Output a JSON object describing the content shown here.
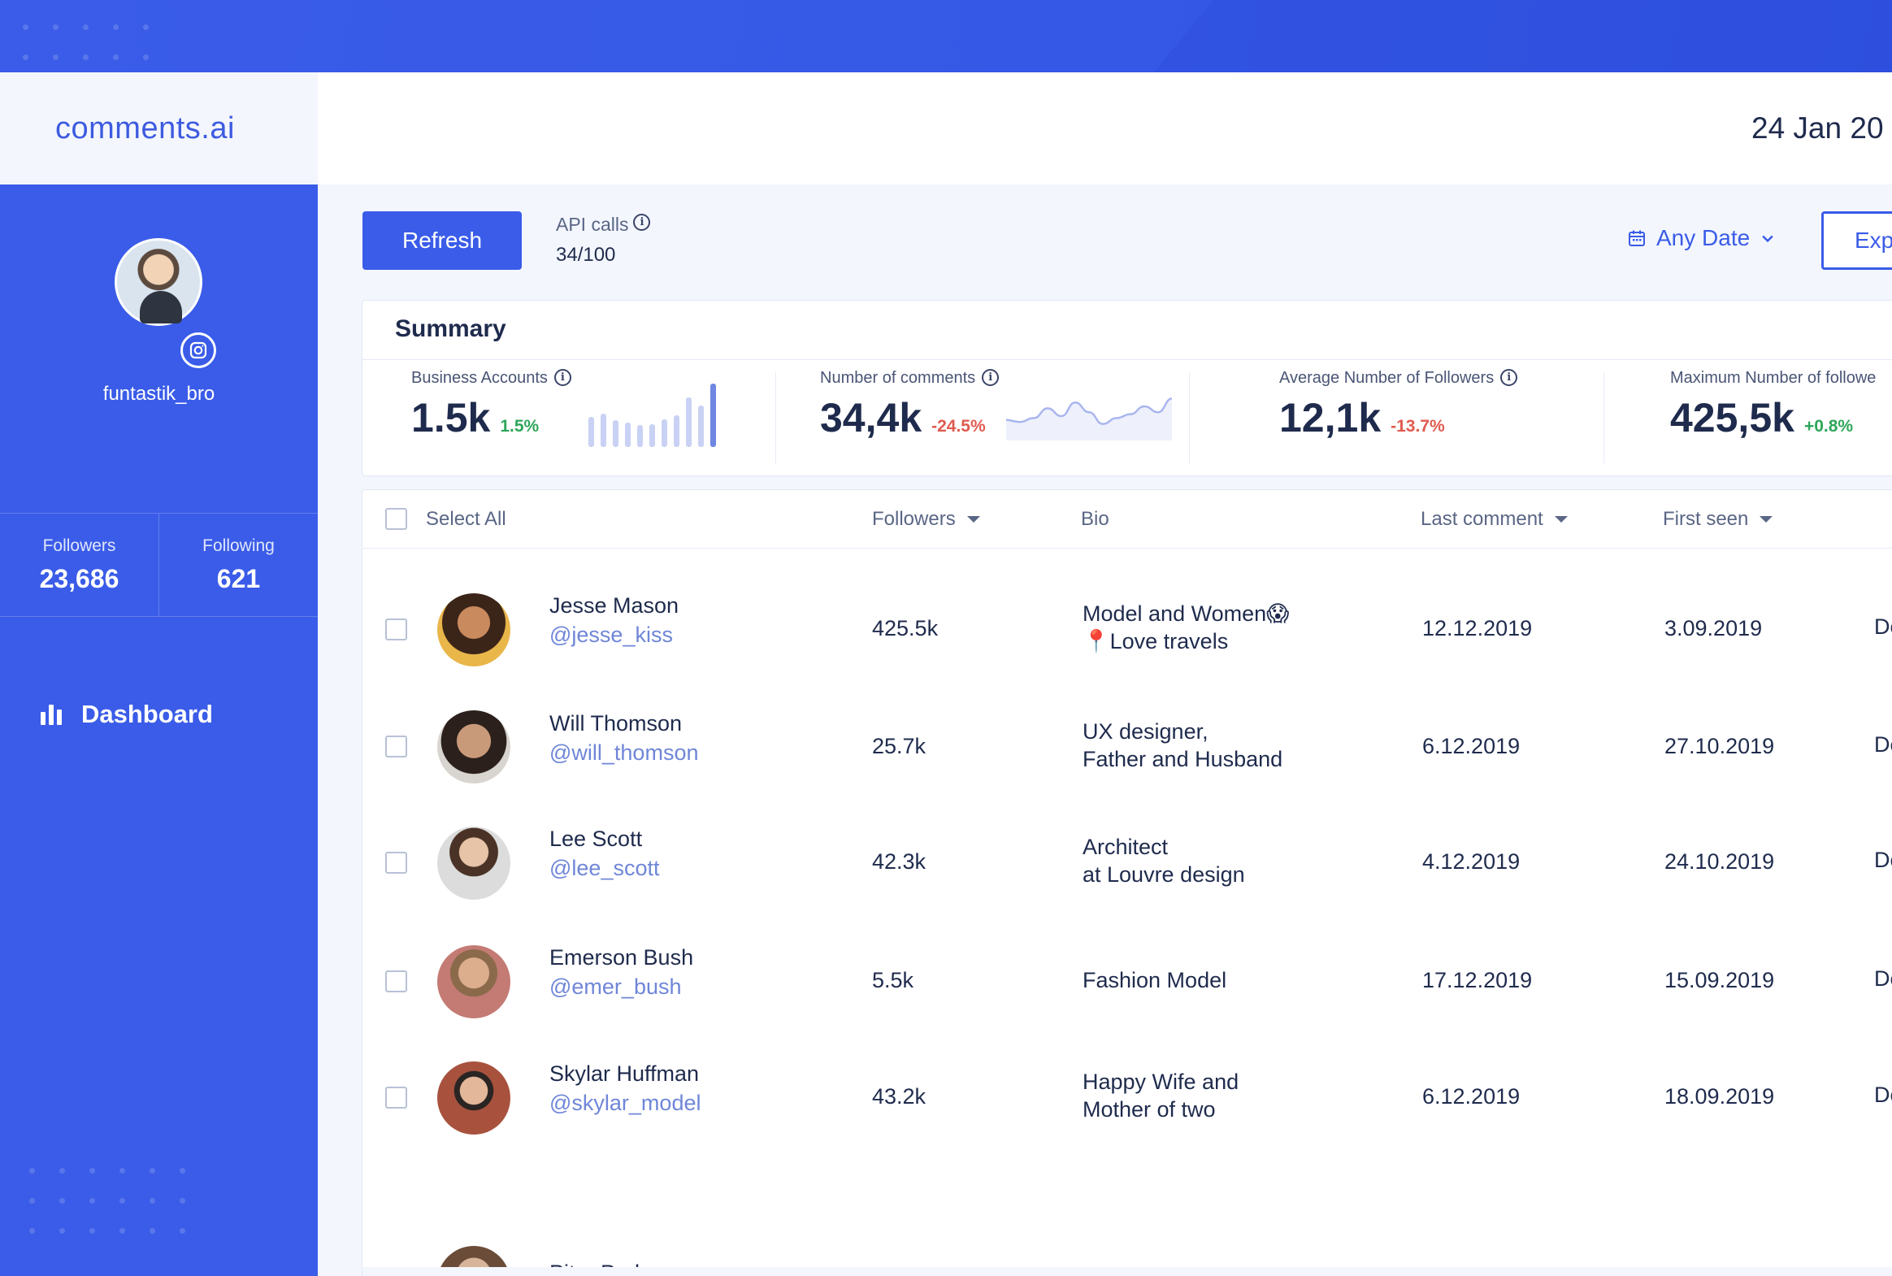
{
  "app": {
    "brand": "comments.ai",
    "date": "24 Jan 20",
    "colors": {
      "accent": "#3a5ce8",
      "positive": "#2ea65a",
      "negative": "#e05a4f"
    }
  },
  "profile": {
    "username": "funtastik_bro",
    "followers_label": "Followers",
    "followers_value": "23,686",
    "following_label": "Following",
    "following_value": "621",
    "badge_icon": "instagram-icon"
  },
  "nav": {
    "dashboard_label": "Dashboard",
    "dashboard_icon": "bar-chart-icon"
  },
  "toolbar": {
    "refresh_label": "Refresh",
    "api_label": "API calls",
    "api_value": "34/100",
    "date_filter_label": "Any Date",
    "export_label": "Exp"
  },
  "summary": {
    "title": "Summary",
    "metrics": [
      {
        "label": "Business Accounts",
        "value": "1.5k",
        "delta": "1.5%",
        "trend": "positive"
      },
      {
        "label": "Number of comments",
        "value": "34,4k",
        "delta": "-24.5%",
        "trend": "negative"
      },
      {
        "label": "Average Number of Followers",
        "value": "12,1k",
        "delta": "-13.7%",
        "trend": "negative"
      },
      {
        "label": "Maximum Number of followe",
        "value": "425,5k",
        "delta": "+0.8%",
        "trend": "positive"
      }
    ],
    "business_bars": [
      0.48,
      0.52,
      0.42,
      0.38,
      0.34,
      0.36,
      0.44,
      0.5,
      0.78,
      0.66,
      1.0
    ],
    "comments_line": [
      0.4,
      0.35,
      0.45,
      0.7,
      0.5,
      0.85,
      0.6,
      0.3,
      0.45,
      0.55,
      0.75,
      0.6,
      0.95
    ]
  },
  "table": {
    "select_all_label": "Select All",
    "columns": {
      "followers": "Followers",
      "bio": "Bio",
      "last_comment": "Last comment",
      "first_seen": "First seen"
    },
    "rows": [
      {
        "name": "Jesse Mason",
        "handle": "@jesse_kiss",
        "followers": "425.5k",
        "bio1": "Model and Women😱",
        "bio2": "📍Love travels",
        "last_comment": "12.12.2019",
        "first_seen": "3.09.2019",
        "extra": "De"
      },
      {
        "name": "Will Thomson",
        "handle": "@will_thomson",
        "followers": "25.7k",
        "bio1": "UX designer,",
        "bio2": "Father and Husband",
        "last_comment": "6.12.2019",
        "first_seen": "27.10.2019",
        "extra": "De"
      },
      {
        "name": "Lee Scott",
        "handle": "@lee_scott",
        "followers": "42.3k",
        "bio1": "Architect",
        "bio2": "at Louvre design",
        "last_comment": "4.12.2019",
        "first_seen": "24.10.2019",
        "extra": "De"
      },
      {
        "name": "Emerson Bush",
        "handle": "@emer_bush",
        "followers": "5.5k",
        "bio1": "Fashion Model",
        "bio2": "",
        "last_comment": "17.12.2019",
        "first_seen": "15.09.2019",
        "extra": "De"
      },
      {
        "name": "Skylar Huffman",
        "handle": "@skylar_model",
        "followers": "43.2k",
        "bio1": "Happy Wife and",
        "bio2": "Mother of two",
        "last_comment": "6.12.2019",
        "first_seen": "18.09.2019",
        "extra": "De"
      }
    ],
    "partial_row_name": "Piter Parker"
  }
}
